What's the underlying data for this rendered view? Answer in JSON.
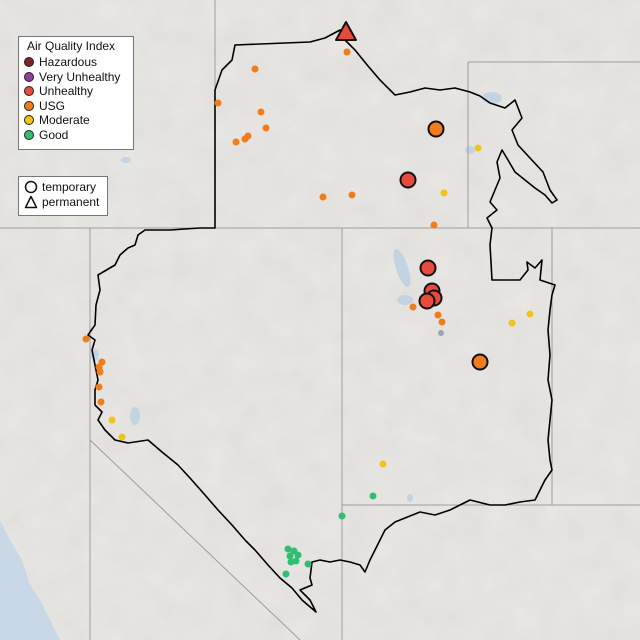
{
  "legend": {
    "title": "Air Quality Index",
    "categories": [
      {
        "label": "Hazardous",
        "color": "#7e2626"
      },
      {
        "label": "Very Unhealthy",
        "color": "#8f3f97"
      },
      {
        "label": "Unhealthy",
        "color": "#e84b3c"
      },
      {
        "label": "USG",
        "color": "#f07d1a"
      },
      {
        "label": "Moderate",
        "color": "#f2c318"
      },
      {
        "label": "Good",
        "color": "#2fbf71"
      }
    ]
  },
  "shape_legend": {
    "items": [
      {
        "label": "temporary",
        "shape": "circle"
      },
      {
        "label": "permanent",
        "shape": "triangle"
      }
    ]
  }
}
